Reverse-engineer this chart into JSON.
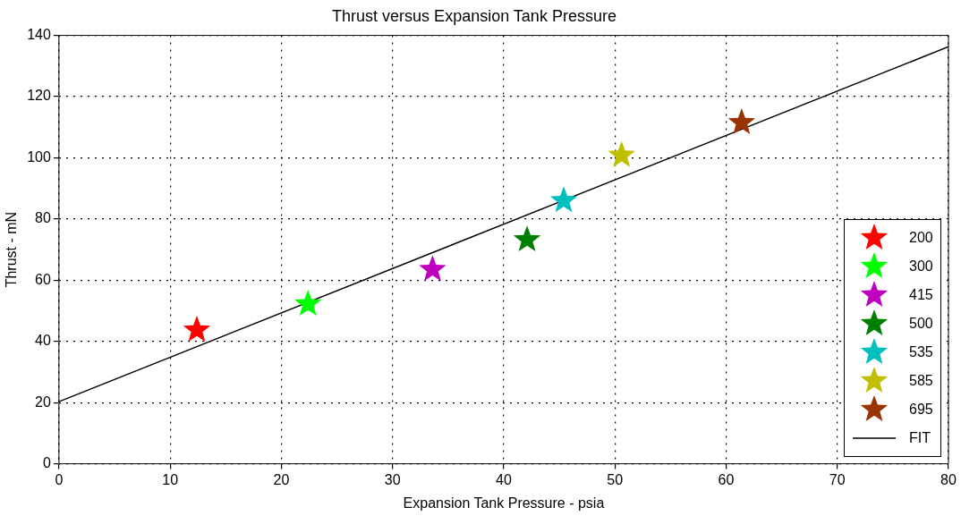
{
  "chart_data": {
    "type": "scatter",
    "title": "Thrust versus Expansion Tank Pressure",
    "xlabel": "Expansion Tank Pressure - psia",
    "ylabel": "Thrust - mN",
    "xlim": [
      0,
      80
    ],
    "xticks": [
      0,
      10,
      20,
      30,
      40,
      50,
      60,
      70,
      80
    ],
    "ylim": [
      0,
      140
    ],
    "yticks": [
      0,
      20,
      40,
      60,
      80,
      100,
      120,
      140
    ],
    "grid": true,
    "legend": "bottom right",
    "marker": "star",
    "series": [
      {
        "name": "200",
        "color": "#ff0000",
        "x": [
          12.4
        ],
        "values": [
          43.7
        ]
      },
      {
        "name": "300",
        "color": "#00ff00",
        "x": [
          22.4
        ],
        "values": [
          52.2
        ]
      },
      {
        "name": "415",
        "color": "#bf00bf",
        "x": [
          33.6
        ],
        "values": [
          63.5
        ]
      },
      {
        "name": "500",
        "color": "#008000",
        "x": [
          42.1
        ],
        "values": [
          73.2
        ]
      },
      {
        "name": "535",
        "color": "#00bfbf",
        "x": [
          45.4
        ],
        "values": [
          86
        ]
      },
      {
        "name": "585",
        "color": "#bfbf00",
        "x": [
          50.6
        ],
        "values": [
          100.8
        ]
      },
      {
        "name": "695",
        "color": "#993300",
        "x": [
          61.4
        ],
        "values": [
          111.5
        ]
      },
      {
        "name": "FIT",
        "type": "line",
        "color": "#000000",
        "marker": "none",
        "x": [
          0,
          80
        ],
        "values": [
          20.3,
          136.3
        ]
      }
    ]
  }
}
